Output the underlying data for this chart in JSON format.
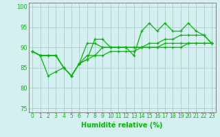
{
  "x": [
    0,
    1,
    2,
    3,
    4,
    5,
    6,
    7,
    8,
    9,
    10,
    11,
    12,
    13,
    14,
    15,
    16,
    17,
    18,
    19,
    20,
    21,
    22,
    23
  ],
  "line1": [
    89,
    88,
    88,
    88,
    85,
    83,
    86,
    87,
    92,
    92,
    90,
    90,
    90,
    88,
    94,
    96,
    94,
    96,
    94,
    94,
    96,
    94,
    93,
    91
  ],
  "line2": [
    89,
    88,
    83,
    84,
    85,
    83,
    86,
    91,
    91,
    90,
    90,
    90,
    90,
    90,
    90,
    90,
    90,
    91,
    91,
    91,
    91,
    91,
    91,
    91
  ],
  "line3": [
    89,
    88,
    88,
    88,
    85,
    83,
    86,
    88,
    88,
    90,
    90,
    90,
    90,
    90,
    90,
    91,
    91,
    92,
    92,
    93,
    93,
    93,
    93,
    91
  ],
  "line4": [
    89,
    88,
    88,
    88,
    85,
    83,
    86,
    87,
    88,
    88,
    89,
    89,
    89,
    89,
    90,
    90,
    90,
    90,
    90,
    90,
    91,
    91,
    91,
    91
  ],
  "bg_color": "#d4f0f0",
  "grid_color": "#aacccc",
  "line_color": "#00bb00",
  "spine_color": "#888888",
  "xlabel": "Humidité relative (%)",
  "ylim": [
    74,
    101
  ],
  "xlim": [
    -0.5,
    23.5
  ],
  "yticks": [
    75,
    80,
    85,
    90,
    95,
    100
  ],
  "xticks": [
    0,
    1,
    2,
    3,
    4,
    5,
    6,
    7,
    8,
    9,
    10,
    11,
    12,
    13,
    14,
    15,
    16,
    17,
    18,
    19,
    20,
    21,
    22,
    23
  ],
  "tick_fontsize": 5.5,
  "xlabel_fontsize": 7,
  "lw": 0.9,
  "ms": 3.5
}
